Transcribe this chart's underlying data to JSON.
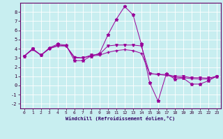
{
  "xlabel": "Windchill (Refroidissement éolien,°C)",
  "bg_color": "#c8eef0",
  "grid_color": "#ffffff",
  "line_color": "#990099",
  "xlim": [
    -0.5,
    23.5
  ],
  "ylim": [
    -2.5,
    9.0
  ],
  "xticks": [
    0,
    1,
    2,
    3,
    4,
    5,
    6,
    7,
    8,
    9,
    10,
    11,
    12,
    13,
    14,
    15,
    16,
    17,
    18,
    19,
    20,
    21,
    22,
    23
  ],
  "yticks": [
    -2,
    -1,
    0,
    1,
    2,
    3,
    4,
    5,
    6,
    7,
    8
  ],
  "line1_x": [
    0,
    1,
    2,
    3,
    4,
    5,
    6,
    7,
    8,
    9,
    10,
    11,
    12,
    13,
    14,
    15,
    16,
    17,
    18,
    19,
    20,
    21,
    22,
    23
  ],
  "line1_y": [
    3.2,
    4.0,
    3.3,
    4.1,
    4.5,
    4.4,
    2.7,
    2.7,
    3.2,
    3.5,
    5.5,
    7.2,
    8.6,
    7.7,
    4.5,
    0.3,
    -1.7,
    1.3,
    0.7,
    0.8,
    0.15,
    0.15,
    0.5,
    1.0
  ],
  "line2_x": [
    0,
    1,
    2,
    3,
    4,
    5,
    6,
    7,
    8,
    9,
    10,
    11,
    12,
    13,
    14,
    15,
    16,
    17,
    18,
    19,
    20,
    21,
    22,
    23
  ],
  "line2_y": [
    3.2,
    3.9,
    3.3,
    4.0,
    4.3,
    4.3,
    3.1,
    3.0,
    3.2,
    3.3,
    3.6,
    3.8,
    3.9,
    3.8,
    3.5,
    1.3,
    1.2,
    1.1,
    0.9,
    0.85,
    0.75,
    0.7,
    0.7,
    0.95
  ],
  "line3_x": [
    0,
    1,
    2,
    3,
    4,
    5,
    6,
    7,
    8,
    9,
    10,
    11,
    12,
    13,
    14,
    15,
    16,
    17,
    18,
    19,
    20,
    21,
    22,
    23
  ],
  "line3_y": [
    3.2,
    4.0,
    3.3,
    4.0,
    4.4,
    4.3,
    3.0,
    3.0,
    3.3,
    3.4,
    4.3,
    4.4,
    4.4,
    4.4,
    4.3,
    1.3,
    1.2,
    1.2,
    1.0,
    1.0,
    0.85,
    0.85,
    0.8,
    1.0
  ]
}
